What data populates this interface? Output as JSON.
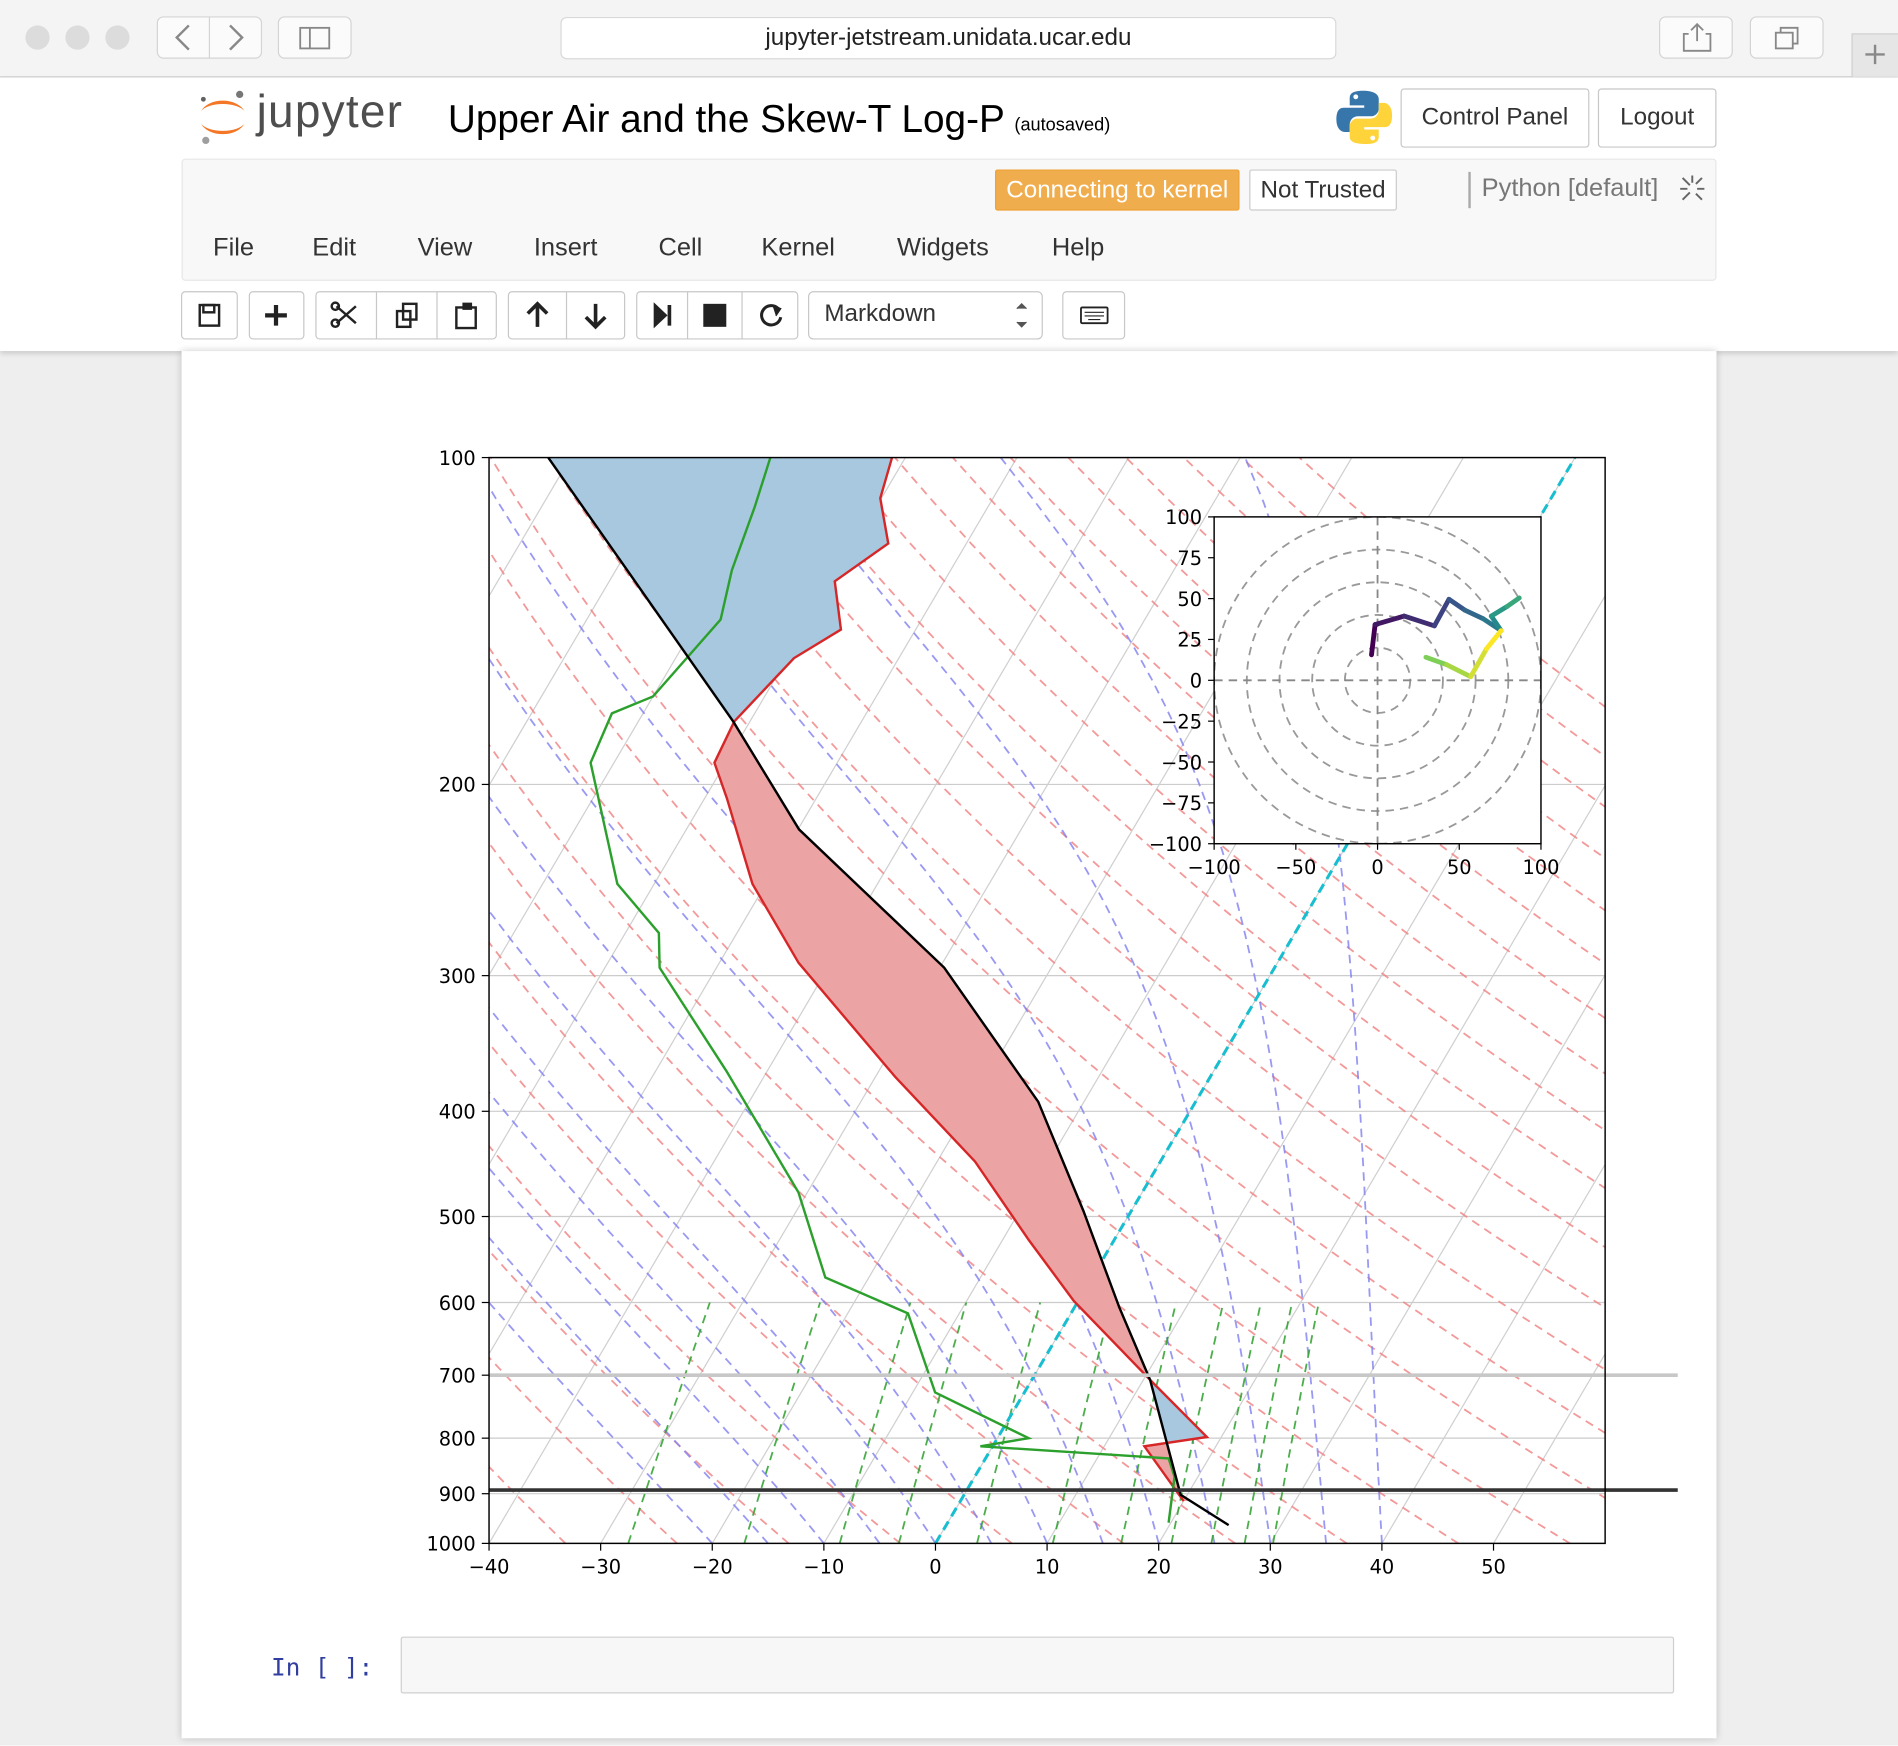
{
  "browser": {
    "url": "jupyter-jetstream.unidata.ucar.edu"
  },
  "header": {
    "logo": "jupyter",
    "title": "Upper Air and the Skew-T Log-P",
    "autosave": "(autosaved)",
    "buttons": [
      "Control Panel",
      "Logout"
    ]
  },
  "status": {
    "kernel_state": "Connecting to kernel",
    "trust": "Not Trusted",
    "kernel": "Python [default]"
  },
  "menu": [
    "File",
    "Edit",
    "View",
    "Insert",
    "Cell",
    "Kernel",
    "Widgets",
    "Help"
  ],
  "toolbar": {
    "cell_type": "Markdown"
  },
  "cell_prompt": "In [ ]:",
  "chart_data": [
    {
      "type": "skewt",
      "y_scale": "log",
      "grid": true,
      "xlim": [
        -40,
        60
      ],
      "ylim": [
        1000,
        100
      ],
      "xticks": [
        {
          "value": -40,
          "label": "−40"
        },
        {
          "value": -30,
          "label": "−30"
        },
        {
          "value": -20,
          "label": "−20"
        },
        {
          "value": -10,
          "label": "−10"
        },
        0,
        10,
        20,
        30,
        40,
        50
      ],
      "yticks": [
        100,
        200,
        300,
        400,
        500,
        600,
        700,
        800,
        900,
        1000
      ],
      "series": [
        {
          "color": "#d62728",
          "p": [
            914,
            814,
            798,
            707,
            598,
            526,
            445,
            372,
            292,
            247,
            206,
            191,
            175,
            153,
            144,
            130,
            120,
            109,
            100
          ],
          "values": [
            20.0,
            13.6,
            18.7,
            10.6,
            -0.4,
            -7.6,
            -16.6,
            -28.2,
            -42.9,
            -51.2,
            -58.0,
            -61.0,
            -61.4,
            -59.4,
            -56.7,
            -59.8,
            -57.0,
            -60.1,
            -61.2
          ]
        },
        {
          "color": "#2ca02c",
          "p": [
            957,
            868,
            835,
            814,
            800,
            726,
            614,
            569,
            475,
            367,
            295,
            274,
            247,
            191,
            172,
            166,
            141,
            127,
            111,
            100
          ],
          "values": [
            19.8,
            17.9,
            16.4,
            -1.1,
            2.8,
            -8.0,
            -14.6,
            -23.9,
            -30.8,
            -43.7,
            -55.1,
            -57.0,
            -63.3,
            -72.1,
            -72.8,
            -70.0,
            -68.0,
            -69.6,
            -70.9,
            -72.1
          ]
        },
        {
          "color": "#000000",
          "p": [
            962,
            902,
            707,
            606,
            494,
            392,
            295,
            220,
            175,
            100
          ],
          "values": [
            25.3,
            19.4,
            10.6,
            4.0,
            -4.3,
            -14.1,
            -29.6,
            -49.9,
            -61.5,
            -92.0
          ]
        }
      ],
      "fill_between": {
        "series": [
          2,
          0
        ],
        "positive_color": "#eba3a3",
        "negative_color": "#a8c8e0"
      },
      "hlines": [
        {
          "value": 700,
          "color": "#c8c8c8"
        },
        {
          "value": 893,
          "color": "#333333"
        }
      ]
    },
    {
      "type": "hodograph",
      "colormap": "viridis",
      "xlim": [
        -100,
        100
      ],
      "ylim": [
        -100,
        100
      ],
      "xticks": [
        {
          "value": -100,
          "label": "−100"
        },
        {
          "value": -50,
          "label": "−50"
        },
        0,
        50,
        100
      ],
      "yticks": [
        100,
        75,
        50,
        25,
        0,
        {
          "value": -25,
          "label": "−25"
        },
        {
          "value": -50,
          "label": "−50"
        },
        {
          "value": -75,
          "label": "−75"
        },
        {
          "value": -100,
          "label": "−100"
        }
      ],
      "grid_rings": [
        20,
        40,
        60,
        80,
        100
      ],
      "x": [
        -3.7,
        -1.5,
        16.3,
        34.8,
        43.7,
        53.3,
        64.4,
        75.6,
        69.6,
        79.3,
        86.7,
        null,
        29.6,
        42.2,
        57.0,
        66.7,
        75.6
      ],
      "values": [
        15.6,
        34.1,
        39.3,
        33.3,
        49.6,
        43.0,
        37.8,
        30.4,
        39.3,
        45.2,
        50.4,
        null,
        14.1,
        9.6,
        2.2,
        19.3,
        30.4
      ]
    }
  ]
}
